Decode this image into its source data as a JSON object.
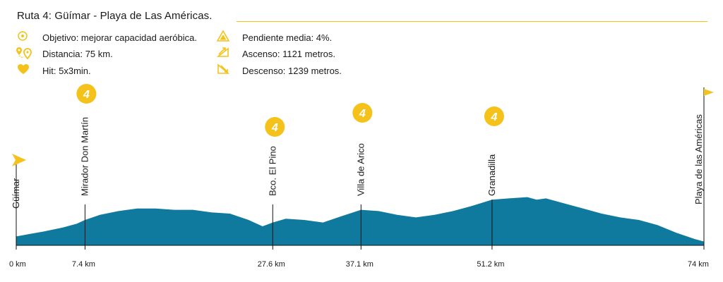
{
  "header": {
    "title": "Ruta 4: Güímar - Playa de Las Américas."
  },
  "stats_left": [
    {
      "icon": "target-icon",
      "text": "Objetivo: mejorar capacidad aeróbica."
    },
    {
      "icon": "route-pin-icon",
      "text": "Distancia: 75 km."
    },
    {
      "icon": "heart-icon",
      "text": "Hit: 5x3min."
    }
  ],
  "stats_right": [
    {
      "icon": "slope-triangle-icon",
      "text": "Pendiente media: 4%."
    },
    {
      "icon": "ascent-icon",
      "text": "Ascenso: 1121 metros."
    },
    {
      "icon": "descent-icon",
      "text": "Descenso: 1239 metros."
    }
  ],
  "colors": {
    "accent": "#f5c21b",
    "profile_fill": "#0f7a9e",
    "profile_top": "#0d6f8f",
    "text": "#1a1a1a"
  },
  "chart_data": {
    "type": "area",
    "title": "",
    "xlabel": "",
    "ylabel": "",
    "xlim": [
      0,
      74
    ],
    "grid": false,
    "points": [
      [
        0,
        0.07
      ],
      [
        1.5,
        0.09
      ],
      [
        3,
        0.11
      ],
      [
        5,
        0.14
      ],
      [
        6.5,
        0.17
      ],
      [
        7.4,
        0.2
      ],
      [
        9,
        0.24
      ],
      [
        11,
        0.27
      ],
      [
        13,
        0.29
      ],
      [
        15,
        0.29
      ],
      [
        17,
        0.28
      ],
      [
        19,
        0.28
      ],
      [
        21,
        0.26
      ],
      [
        23,
        0.25
      ],
      [
        25,
        0.2
      ],
      [
        26.5,
        0.15
      ],
      [
        27.6,
        0.18
      ],
      [
        29,
        0.21
      ],
      [
        31,
        0.2
      ],
      [
        33,
        0.18
      ],
      [
        35,
        0.23
      ],
      [
        37.1,
        0.28
      ],
      [
        39,
        0.27
      ],
      [
        41,
        0.24
      ],
      [
        43,
        0.22
      ],
      [
        45,
        0.24
      ],
      [
        47,
        0.27
      ],
      [
        49,
        0.31
      ],
      [
        51.2,
        0.36
      ],
      [
        53,
        0.37
      ],
      [
        55,
        0.38
      ],
      [
        56,
        0.36
      ],
      [
        57,
        0.37
      ],
      [
        59,
        0.33
      ],
      [
        61,
        0.29
      ],
      [
        63,
        0.25
      ],
      [
        65,
        0.22
      ],
      [
        67,
        0.2
      ],
      [
        69,
        0.16
      ],
      [
        71,
        0.1
      ],
      [
        73,
        0.05
      ],
      [
        74,
        0.03
      ]
    ],
    "markers": [
      {
        "km": 0,
        "km_label": "0 km",
        "name": "Güímar",
        "flag": "start",
        "category": ""
      },
      {
        "km": 7.4,
        "km_label": "7.4 km",
        "name": "Mirador Don Martín",
        "category": "4"
      },
      {
        "km": 27.6,
        "km_label": "27.6 km",
        "name": "Bco. El Pino",
        "category": "4"
      },
      {
        "km": 37.1,
        "km_label": "37.1 km",
        "name": "Villa de Arico",
        "category": "4"
      },
      {
        "km": 51.2,
        "km_label": "51.2 km",
        "name": "Granadilla",
        "category": "4"
      },
      {
        "km": 74,
        "km_label": "74 km",
        "name": "Playa de las Américas",
        "flag": "finish",
        "category": ""
      }
    ]
  }
}
